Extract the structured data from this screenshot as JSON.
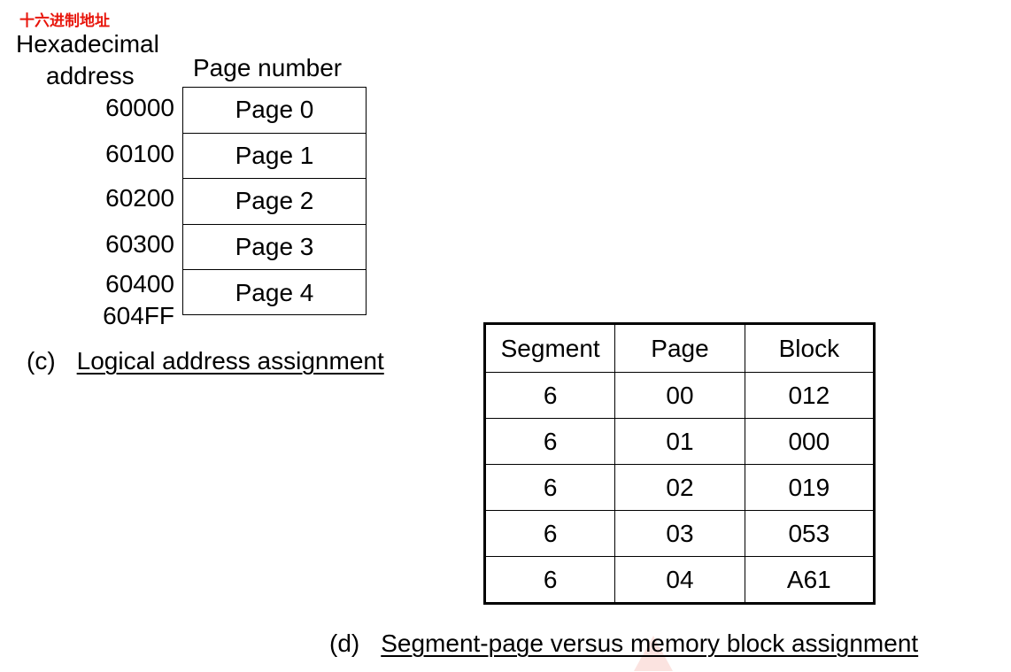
{
  "colors": {
    "note_red": "#e8150b",
    "text": "#000000",
    "watermark": "#fbe3e0"
  },
  "note": "十六进制地址",
  "logical": {
    "hex_title_line1": "Hexadecimal",
    "hex_title_line2": "address",
    "page_number_title": "Page number",
    "addresses": [
      "60000",
      "60100",
      "60200",
      "60300",
      "60400",
      "604FF"
    ],
    "pages": [
      "Page 0",
      "Page 1",
      "Page 2",
      "Page 3",
      "Page 4"
    ],
    "caption_label": "(c)",
    "caption_text": "Logical address assignment"
  },
  "segment_table": {
    "headers": [
      "Segment",
      "Page",
      "Block"
    ],
    "rows": [
      [
        "6",
        "00",
        "012"
      ],
      [
        "6",
        "01",
        "000"
      ],
      [
        "6",
        "02",
        "019"
      ],
      [
        "6",
        "03",
        "053"
      ],
      [
        "6",
        "04",
        "A61"
      ]
    ],
    "caption_label": "(d)",
    "caption_text": "Segment-page versus memory block assignment"
  }
}
